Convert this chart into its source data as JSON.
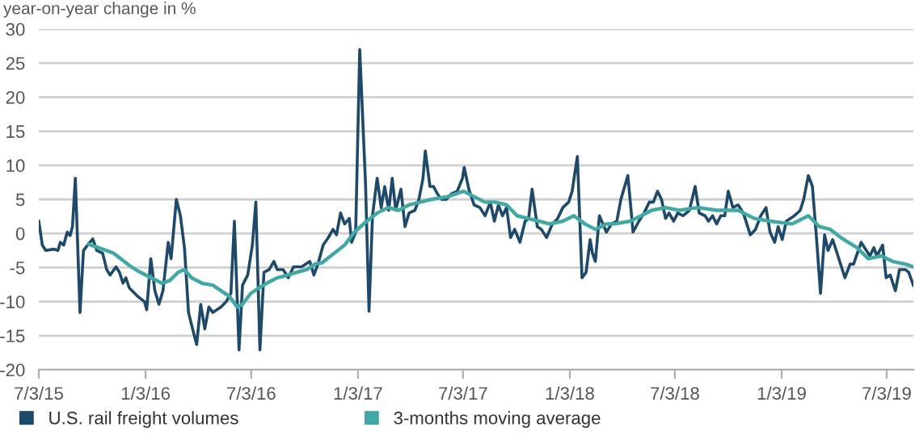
{
  "chart_data": {
    "type": "line",
    "ylabel": "year-on-year change in %",
    "grid": "y",
    "legend": "bottom",
    "marker": "none",
    "line_style": "solid",
    "xlim": [
      "2015-07-03",
      "2019-08-18"
    ],
    "ylim": [
      -20,
      30
    ],
    "xticks": [
      {
        "value": "2015-07-03",
        "label": "7/3/15"
      },
      {
        "value": "2016-01-03",
        "label": "1/3/16"
      },
      {
        "value": "2016-07-03",
        "label": "7/3/16"
      },
      {
        "value": "2017-01-03",
        "label": "1/3/17"
      },
      {
        "value": "2017-07-03",
        "label": "7/3/17"
      },
      {
        "value": "2018-01-03",
        "label": "1/3/18"
      },
      {
        "value": "2018-07-03",
        "label": "7/3/18"
      },
      {
        "value": "2019-01-03",
        "label": "1/3/19"
      },
      {
        "value": "2019-07-03",
        "label": "7/3/19"
      }
    ],
    "yticks": [
      -20,
      -15,
      -10,
      -5,
      0,
      5,
      10,
      15,
      20,
      25,
      30
    ],
    "series": [
      {
        "name": "U.S. rail freight volumes",
        "color": "#1d4a6b",
        "x": [
          "2015-07-03",
          "2015-07-09",
          "2015-07-15",
          "2015-07-29",
          "2015-08-05",
          "2015-08-09",
          "2015-08-15",
          "2015-08-21",
          "2015-08-26",
          "2015-08-30",
          "2015-09-04",
          "2015-09-12",
          "2015-09-18",
          "2015-09-25",
          "2015-10-04",
          "2015-10-11",
          "2015-10-21",
          "2015-10-28",
          "2015-11-03",
          "2015-11-13",
          "2015-11-19",
          "2015-11-25",
          "2015-11-30",
          "2015-12-06",
          "2015-12-20",
          "2016-01-01",
          "2016-01-05",
          "2016-01-12",
          "2016-01-19",
          "2016-01-26",
          "2016-02-02",
          "2016-02-11",
          "2016-02-16",
          "2016-02-25",
          "2016-03-03",
          "2016-03-10",
          "2016-03-17",
          "2016-03-24",
          "2016-03-31",
          "2016-04-07",
          "2016-04-14",
          "2016-04-21",
          "2016-04-28",
          "2016-05-12",
          "2016-05-21",
          "2016-05-29",
          "2016-06-04",
          "2016-06-12",
          "2016-06-18",
          "2016-06-27",
          "2016-07-05",
          "2016-07-11",
          "2016-07-18",
          "2016-07-25",
          "2016-08-03",
          "2016-08-11",
          "2016-08-17",
          "2016-08-27",
          "2016-09-05",
          "2016-09-14",
          "2016-09-28",
          "2016-10-12",
          "2016-10-19",
          "2016-10-26",
          "2016-11-04",
          "2016-11-13",
          "2016-11-21",
          "2016-11-27",
          "2016-12-04",
          "2016-12-11",
          "2016-12-19",
          "2016-12-23",
          "2016-12-30",
          "2017-01-06",
          "2017-01-16",
          "2017-01-22",
          "2017-01-28",
          "2017-02-05",
          "2017-02-12",
          "2017-02-18",
          "2017-02-25",
          "2017-03-03",
          "2017-03-09",
          "2017-03-18",
          "2017-03-25",
          "2017-04-01",
          "2017-04-11",
          "2017-04-18",
          "2017-04-25",
          "2017-04-29",
          "2017-05-07",
          "2017-05-13",
          "2017-05-20",
          "2017-05-27",
          "2017-06-04",
          "2017-06-13",
          "2017-06-23",
          "2017-07-02",
          "2017-07-05",
          "2017-07-13",
          "2017-07-22",
          "2017-08-01",
          "2017-08-10",
          "2017-08-19",
          "2017-08-26",
          "2017-09-02",
          "2017-09-09",
          "2017-09-16",
          "2017-09-23",
          "2017-09-30",
          "2017-10-09",
          "2017-10-18",
          "2017-10-24",
          "2017-10-30",
          "2017-11-08",
          "2017-11-15",
          "2017-11-24",
          "2017-12-04",
          "2017-12-13",
          "2017-12-22",
          "2018-01-01",
          "2018-01-07",
          "2018-01-16",
          "2018-01-24",
          "2018-01-31",
          "2018-02-07",
          "2018-02-11",
          "2018-02-16",
          "2018-02-23",
          "2018-03-07",
          "2018-03-16",
          "2018-03-25",
          "2018-04-01",
          "2018-04-13",
          "2018-04-22",
          "2018-05-02",
          "2018-05-11",
          "2018-05-20",
          "2018-05-27",
          "2018-06-03",
          "2018-06-10",
          "2018-06-17",
          "2018-06-23",
          "2018-07-01",
          "2018-07-08",
          "2018-07-17",
          "2018-07-28",
          "2018-08-07",
          "2018-08-14",
          "2018-08-24",
          "2018-08-30",
          "2018-09-06",
          "2018-09-13",
          "2018-09-20",
          "2018-09-27",
          "2018-10-03",
          "2018-10-11",
          "2018-10-20",
          "2018-10-29",
          "2018-11-10",
          "2018-11-19",
          "2018-11-28",
          "2018-12-07",
          "2018-12-14",
          "2018-12-22",
          "2018-12-28",
          "2019-01-04",
          "2019-01-11",
          "2019-01-25",
          "2019-02-04",
          "2019-02-10",
          "2019-02-18",
          "2019-02-25",
          "2019-03-04",
          "2019-03-11",
          "2019-03-18",
          "2019-03-24",
          "2019-04-01",
          "2019-04-10",
          "2019-04-22",
          "2019-05-01",
          "2019-05-07",
          "2019-05-20",
          "2019-05-26",
          "2019-06-04",
          "2019-06-11",
          "2019-06-16",
          "2019-06-26",
          "2019-07-02",
          "2019-07-09",
          "2019-07-18",
          "2019-07-25",
          "2019-08-04",
          "2019-08-10",
          "2019-08-18"
        ],
        "values": [
          1.8,
          -1.7,
          -2.5,
          -2.3,
          -2.5,
          -1.3,
          -1.7,
          0.2,
          -0.3,
          1.0,
          8.1,
          -11.6,
          -2.5,
          -1.7,
          -0.8,
          -2.5,
          -2.9,
          -5.3,
          -6.1,
          -4.9,
          -5.7,
          -7.3,
          -6.5,
          -8.0,
          -9.2,
          -10.0,
          -11.2,
          -3.7,
          -8.4,
          -10.4,
          -8.4,
          -1.3,
          -3.7,
          5.0,
          2.6,
          -2.1,
          -11.6,
          -14.0,
          -16.3,
          -10.4,
          -14.0,
          -10.8,
          -11.6,
          -10.8,
          -10.0,
          -8.8,
          1.8,
          -17.1,
          -7.6,
          -6.1,
          -1.7,
          4.6,
          -17.1,
          -5.7,
          -5.3,
          -4.1,
          -5.3,
          -5.3,
          -6.5,
          -4.9,
          -4.9,
          -4.1,
          -6.1,
          -4.5,
          -1.7,
          -0.6,
          0.6,
          -0.2,
          3.0,
          1.4,
          2.2,
          -1.3,
          0.2,
          27.0,
          7.3,
          -11.4,
          2.6,
          8.1,
          3.8,
          6.9,
          3.4,
          8.1,
          3.4,
          6.5,
          1.0,
          3.0,
          3.4,
          5.0,
          8.1,
          12.1,
          6.9,
          6.9,
          5.8,
          5.0,
          5.0,
          5.8,
          6.2,
          8.1,
          9.7,
          6.5,
          4.2,
          3.8,
          2.6,
          4.6,
          1.8,
          4.2,
          2.6,
          3.8,
          -0.6,
          0.6,
          -1.3,
          1.8,
          2.2,
          6.5,
          1.0,
          0.6,
          -0.6,
          1.4,
          2.2,
          3.8,
          4.6,
          6.2,
          11.3,
          -6.5,
          -5.7,
          -0.9,
          -2.9,
          -4.1,
          2.6,
          0.2,
          1.4,
          1.8,
          5.0,
          8.5,
          0.2,
          1.8,
          3.0,
          4.6,
          4.6,
          6.2,
          5.0,
          2.2,
          3.0,
          1.8,
          3.0,
          2.6,
          3.4,
          6.9,
          3.0,
          2.6,
          1.8,
          2.6,
          1.4,
          2.6,
          2.6,
          6.2,
          3.8,
          4.2,
          3.0,
          -0.2,
          0.6,
          2.6,
          3.8,
          0.2,
          -1.3,
          1.0,
          -0.9,
          1.8,
          2.6,
          3.4,
          5.0,
          8.5,
          6.9,
          -0.6,
          -8.8,
          -0.2,
          -2.5,
          -0.9,
          -3.3,
          -6.5,
          -4.5,
          -4.5,
          -1.3,
          -2.1,
          -3.3,
          -2.1,
          -3.3,
          -1.7,
          -6.5,
          -6.1,
          -8.4,
          -5.3,
          -5.3,
          -5.7,
          -7.6
        ]
      },
      {
        "name": "3-months moving average",
        "color": "#3fa9a3",
        "x": [
          "2015-09-27",
          "2015-10-21",
          "2015-11-09",
          "2015-11-27",
          "2015-12-11",
          "2015-12-25",
          "2016-01-12",
          "2016-01-31",
          "2016-02-14",
          "2016-02-28",
          "2016-03-10",
          "2016-03-22",
          "2016-04-09",
          "2016-04-28",
          "2016-05-12",
          "2016-05-26",
          "2016-06-09",
          "2016-06-18",
          "2016-07-02",
          "2016-07-16",
          "2016-07-30",
          "2016-08-17",
          "2016-09-05",
          "2016-09-19",
          "2016-10-07",
          "2016-10-21",
          "2016-11-02",
          "2016-11-23",
          "2016-12-11",
          "2016-12-28",
          "2017-01-18",
          "2017-02-05",
          "2017-02-24",
          "2017-03-14",
          "2017-04-01",
          "2017-04-20",
          "2017-05-09",
          "2017-06-06",
          "2017-07-04",
          "2017-07-22",
          "2017-08-10",
          "2017-08-28",
          "2017-09-16",
          "2017-10-04",
          "2017-10-23",
          "2017-11-11",
          "2017-11-29",
          "2017-12-22",
          "2018-01-10",
          "2018-01-29",
          "2018-02-16",
          "2018-03-07",
          "2018-03-21",
          "2018-04-17",
          "2018-05-06",
          "2018-05-24",
          "2018-06-17",
          "2018-07-10",
          "2018-08-12",
          "2018-09-13",
          "2018-10-20",
          "2018-11-17",
          "2018-12-14",
          "2019-01-21",
          "2019-02-18",
          "2019-03-09",
          "2019-03-28",
          "2019-04-15",
          "2019-05-13",
          "2019-06-01",
          "2019-06-24",
          "2019-07-13",
          "2019-08-04",
          "2019-08-18"
        ],
        "values": [
          -1.6,
          -2.3,
          -2.9,
          -4.1,
          -5.0,
          -5.7,
          -6.5,
          -7.3,
          -6.9,
          -5.7,
          -5.3,
          -6.5,
          -7.3,
          -7.6,
          -8.4,
          -9.2,
          -10.8,
          -10.4,
          -8.8,
          -8.0,
          -7.3,
          -6.5,
          -6.1,
          -5.7,
          -5.3,
          -4.5,
          -4.3,
          -2.9,
          -1.7,
          0.2,
          1.8,
          3.0,
          3.8,
          3.4,
          4.2,
          4.6,
          5.0,
          5.4,
          6.2,
          5.4,
          4.6,
          4.6,
          4.2,
          2.6,
          2.2,
          1.8,
          1.4,
          1.8,
          2.6,
          1.4,
          0.6,
          1.4,
          1.4,
          1.8,
          2.6,
          3.4,
          3.8,
          3.4,
          3.8,
          3.4,
          3.4,
          2.2,
          1.8,
          1.4,
          2.6,
          1.0,
          0.6,
          -0.6,
          -2.1,
          -3.7,
          -3.3,
          -4.1,
          -4.5,
          -4.9
        ]
      }
    ]
  }
}
